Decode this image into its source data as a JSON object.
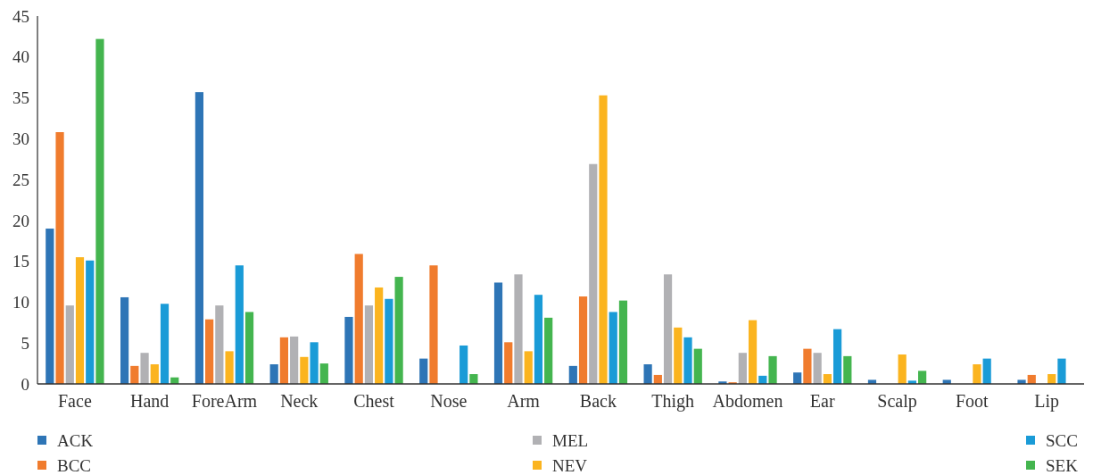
{
  "chart_data": {
    "type": "bar",
    "categories": [
      "Face",
      "Hand",
      "ForeArm",
      "Neck",
      "Chest",
      "Nose",
      "Arm",
      "Back",
      "Thigh",
      "Abdomen",
      "Ear",
      "Scalp",
      "Foot",
      "Lip"
    ],
    "series": [
      {
        "name": "ACK",
        "color": "#2e75b6",
        "values": [
          19.0,
          10.6,
          35.7,
          2.4,
          8.2,
          3.1,
          12.4,
          2.2,
          2.4,
          0.3,
          1.4,
          0.5,
          0.5,
          0.5
        ]
      },
      {
        "name": "BCC",
        "color": "#f07c2e",
        "values": [
          30.8,
          2.2,
          7.9,
          5.7,
          15.9,
          14.5,
          5.1,
          10.7,
          1.1,
          0.2,
          4.3,
          null,
          null,
          1.1
        ]
      },
      {
        "name": "MEL",
        "color": "#b1b1b4",
        "values": [
          9.6,
          3.8,
          9.6,
          5.8,
          9.6,
          null,
          13.4,
          26.9,
          13.4,
          3.8,
          3.8,
          null,
          null,
          null
        ]
      },
      {
        "name": "NEV",
        "color": "#fbb41f",
        "values": [
          15.5,
          2.4,
          4.0,
          3.3,
          11.8,
          null,
          4.0,
          35.3,
          6.9,
          7.8,
          1.2,
          3.6,
          2.4,
          1.2
        ]
      },
      {
        "name": "SCC",
        "color": "#1a9bd7",
        "values": [
          15.1,
          9.8,
          14.5,
          5.1,
          10.4,
          4.7,
          10.9,
          8.8,
          5.7,
          1.0,
          6.7,
          0.4,
          3.1,
          3.1
        ]
      },
      {
        "name": "SEK",
        "color": "#44b54f",
        "values": [
          42.2,
          0.8,
          8.8,
          2.5,
          13.1,
          1.2,
          8.1,
          10.2,
          4.3,
          3.4,
          3.4,
          1.6,
          null,
          null
        ]
      }
    ],
    "ylim": [
      0,
      45
    ],
    "yticks": [
      0,
      5,
      10,
      15,
      20,
      25,
      30,
      35,
      40,
      45
    ],
    "grid": false,
    "legend": "bottom"
  }
}
